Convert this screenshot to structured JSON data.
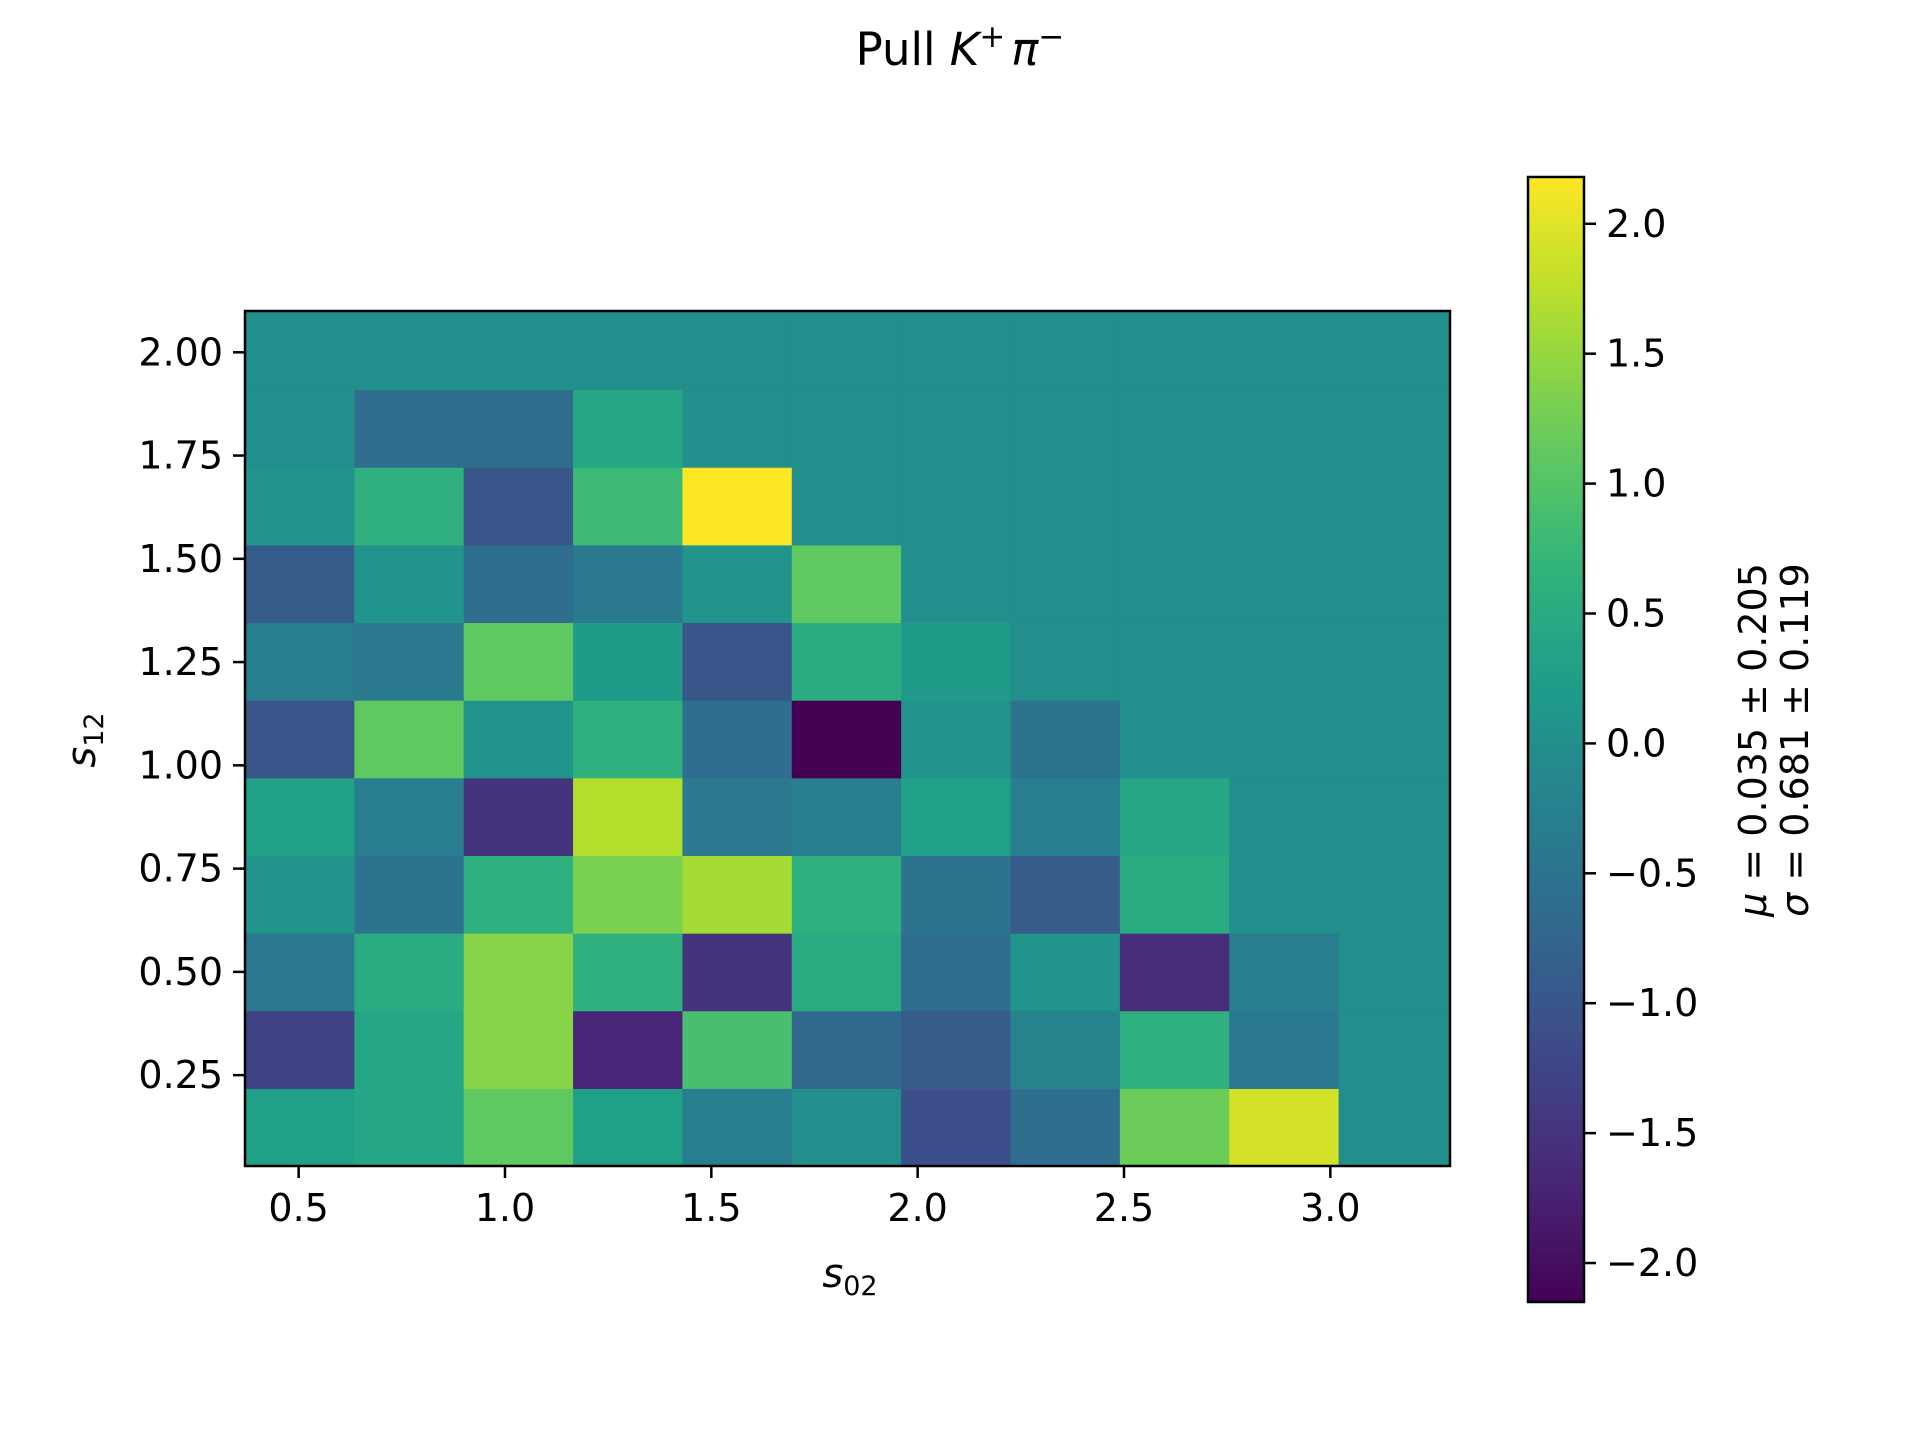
{
  "chart_data": {
    "type": "heatmap",
    "title_prefix": "Pull ",
    "title_particles": [
      {
        "symbol": "K",
        "charge": "+"
      },
      {
        "symbol": "π",
        "charge": "−"
      }
    ],
    "xlabel": {
      "symbol": "s",
      "subscript": "02"
    },
    "ylabel": {
      "symbol": "s",
      "subscript": "12"
    },
    "xlim": [
      0.37,
      3.29
    ],
    "ylim": [
      0.03,
      2.1
    ],
    "x_edges": [
      0.37,
      0.635,
      0.9,
      1.165,
      1.43,
      1.695,
      1.96,
      2.225,
      2.49,
      2.755,
      3.02,
      3.29
    ],
    "y_edges": [
      0.03,
      0.218,
      0.406,
      0.594,
      0.782,
      0.97,
      1.158,
      1.346,
      1.534,
      1.722,
      1.91,
      2.1
    ],
    "x_ticks": [
      {
        "v": 0.5,
        "label": "0.5"
      },
      {
        "v": 1.0,
        "label": "1.0"
      },
      {
        "v": 1.5,
        "label": "1.5"
      },
      {
        "v": 2.0,
        "label": "2.0"
      },
      {
        "v": 2.5,
        "label": "2.5"
      },
      {
        "v": 3.0,
        "label": "3.0"
      }
    ],
    "y_ticks": [
      {
        "v": 0.25,
        "label": "0.25"
      },
      {
        "v": 0.5,
        "label": "0.50"
      },
      {
        "v": 0.75,
        "label": "0.75"
      },
      {
        "v": 1.0,
        "label": "1.00"
      },
      {
        "v": 1.25,
        "label": "1.25"
      },
      {
        "v": 1.5,
        "label": "1.50"
      },
      {
        "v": 1.75,
        "label": "1.75"
      },
      {
        "v": 2.0,
        "label": "2.00"
      }
    ],
    "values": [
      [
        0.3,
        0.4,
        1.1,
        0.3,
        -0.3,
        0.0,
        -1.1,
        -0.6,
        1.2,
        1.9,
        0.0
      ],
      [
        -1.3,
        0.4,
        1.4,
        -1.7,
        0.9,
        -0.7,
        -0.9,
        -0.2,
        0.6,
        -0.4,
        0.0
      ],
      [
        -0.4,
        0.5,
        1.4,
        0.6,
        -1.5,
        0.5,
        -0.6,
        0.1,
        -1.6,
        -0.3,
        0.0
      ],
      [
        0.1,
        -0.5,
        0.6,
        1.3,
        1.6,
        0.6,
        -0.5,
        -0.9,
        0.5,
        0.0,
        0.0
      ],
      [
        0.3,
        -0.3,
        -1.5,
        1.7,
        -0.4,
        -0.3,
        0.3,
        -0.3,
        0.4,
        0.0,
        0.0
      ],
      [
        -1.0,
        1.1,
        0.1,
        0.6,
        -0.6,
        -2.2,
        0.1,
        -0.5,
        0.0,
        0.0,
        0.0
      ],
      [
        -0.3,
        -0.4,
        1.1,
        0.2,
        -1.0,
        0.5,
        0.2,
        0.0,
        0.0,
        0.0,
        0.0
      ],
      [
        -0.9,
        0.1,
        -0.6,
        -0.4,
        0.1,
        1.1,
        0.0,
        0.0,
        0.0,
        0.0,
        0.0
      ],
      [
        0.1,
        0.6,
        -1.0,
        0.8,
        2.2,
        0.0,
        0.0,
        0.0,
        0.0,
        0.0,
        0.0
      ],
      [
        0.0,
        -0.6,
        -0.6,
        0.4,
        0.0,
        0.0,
        0.0,
        0.0,
        0.0,
        0.0,
        0.0
      ],
      [
        0.0,
        0.0,
        0.0,
        0.0,
        0.0,
        0.0,
        0.0,
        0.0,
        0.0,
        0.0,
        0.0
      ]
    ],
    "colorbar": {
      "colormap": "viridis",
      "vmin": -2.15,
      "vmax": 2.18,
      "ticks": [
        {
          "v": 2.0,
          "label": "2.0"
        },
        {
          "v": 1.5,
          "label": "1.5"
        },
        {
          "v": 1.0,
          "label": "1.0"
        },
        {
          "v": 0.5,
          "label": "0.5"
        },
        {
          "v": 0.0,
          "label": "0.0"
        },
        {
          "v": -0.5,
          "label": "−0.5"
        },
        {
          "v": -1.0,
          "label": "−1.0"
        },
        {
          "v": -1.5,
          "label": "−1.5"
        },
        {
          "v": -2.0,
          "label": "−2.0"
        }
      ],
      "label_lines": [
        {
          "symbol": "μ",
          "text": " = 0.035 ± 0.205"
        },
        {
          "symbol": "σ",
          "text": " = 0.681 ± 0.119"
        }
      ]
    },
    "grid": false,
    "legend": "none"
  }
}
